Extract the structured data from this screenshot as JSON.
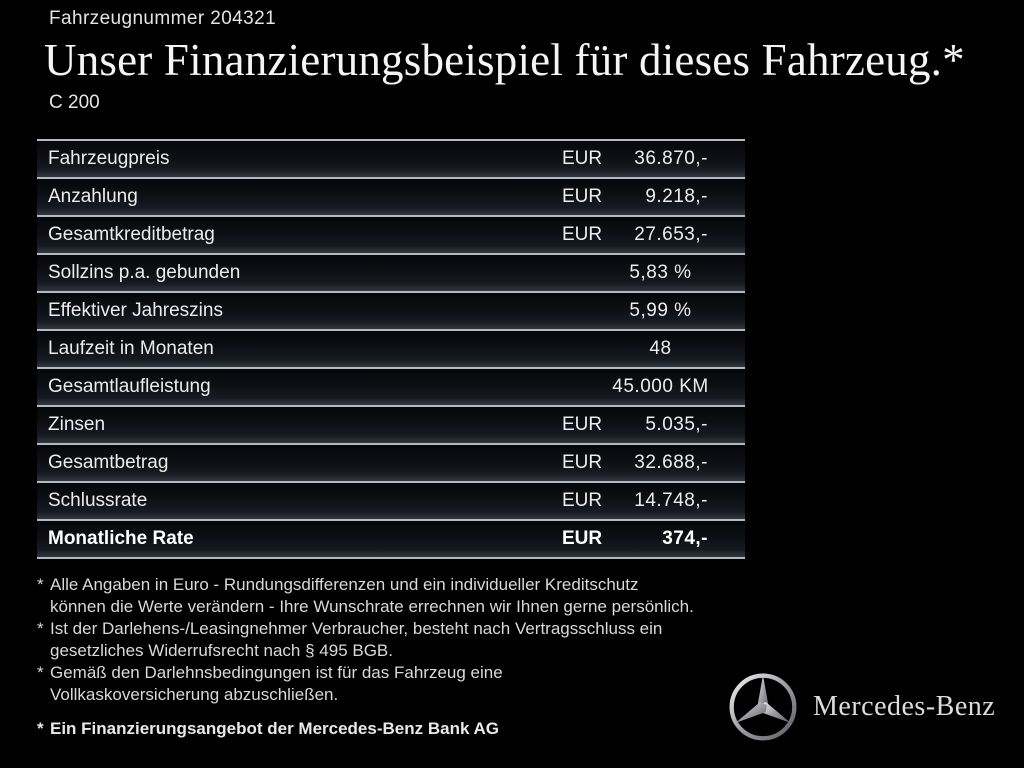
{
  "header": {
    "vehicle_number": "Fahrzeugnummer 204321",
    "title": "Unser Finanzierungsbeispiel für dieses Fahrzeug.*",
    "model": "C 200"
  },
  "finance_table": {
    "rows": [
      {
        "label": "Fahrzeugpreis",
        "currency": "EUR",
        "value": "36.870,-",
        "bold": false
      },
      {
        "label": "Anzahlung",
        "currency": "EUR",
        "value": "9.218,-",
        "bold": false
      },
      {
        "label": "Gesamtkreditbetrag",
        "currency": "EUR",
        "value": "27.653,-",
        "bold": false
      },
      {
        "label": "Sollzins p.a. gebunden",
        "currency": "",
        "value": "5,83 %",
        "bold": false
      },
      {
        "label": "Effektiver Jahreszins",
        "currency": "",
        "value": "5,99 %",
        "bold": false
      },
      {
        "label": "Laufzeit in Monaten",
        "currency": "",
        "value": "48",
        "bold": false
      },
      {
        "label": "Gesamtlaufleistung",
        "currency": "",
        "value": "45.000 KM",
        "bold": false
      },
      {
        "label": "Zinsen",
        "currency": "EUR",
        "value": "5.035,-",
        "bold": false
      },
      {
        "label": "Gesamtbetrag",
        "currency": "EUR",
        "value": "32.688,-",
        "bold": false
      },
      {
        "label": "Schlussrate",
        "currency": "EUR",
        "value": "14.748,-",
        "bold": false
      },
      {
        "label": "Monatliche Rate",
        "currency": "EUR",
        "value": "374,-",
        "bold": true
      }
    ]
  },
  "footnotes": [
    {
      "marker": "*",
      "bold": false,
      "lines": [
        "Alle Angaben in Euro - Rundungsdifferenzen und ein individueller Kreditschutz",
        "können die Werte verändern - Ihre Wunschrate errechnen wir Ihnen gerne persönlich."
      ]
    },
    {
      "marker": "*",
      "bold": false,
      "lines": [
        "Ist der Darlehens-/Leasingnehmer Verbraucher, besteht nach Vertragsschluss ein",
        "gesetzliches Widerrufsrecht nach § 495 BGB."
      ]
    },
    {
      "marker": "*",
      "bold": false,
      "lines": [
        "Gemäß den Darlehnsbedingungen ist für das Fahrzeug eine",
        "Vollkaskoversicherung abzuschließen."
      ]
    },
    {
      "marker": "*",
      "bold": true,
      "lines": [
        "Ein Finanzierungsangebot der Mercedes-Benz Bank AG"
      ]
    }
  ],
  "brand": {
    "wordmark": "Mercedes-Benz",
    "logo_icon": "mercedes-star-icon"
  },
  "colors": {
    "background": "#000000",
    "text_primary": "#ececec",
    "separator_line": "#b4b8bf",
    "row_gradient_top": "#060709",
    "row_gradient_bottom": "#333840",
    "logo_silver": "#c9c9c9"
  }
}
